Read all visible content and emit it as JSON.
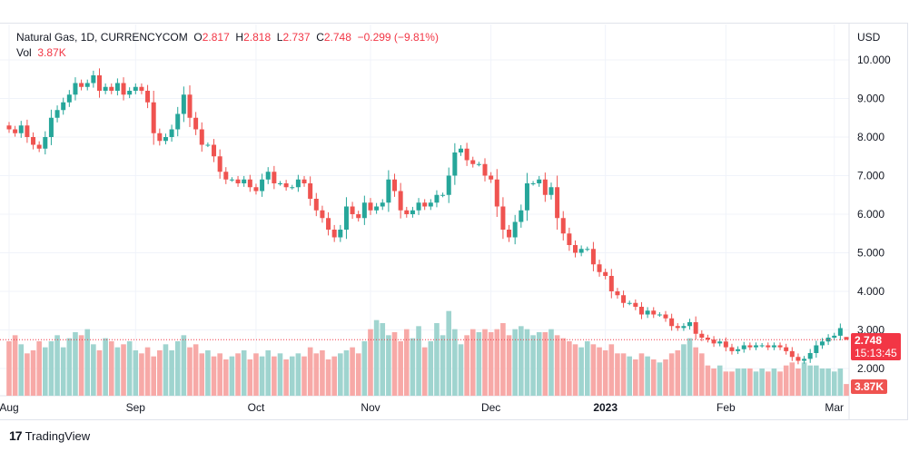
{
  "header": {
    "symbol": "Natural Gas, 1D, CURRENCYCOM",
    "o_label": "O",
    "o": "2.817",
    "h_label": "H",
    "h": "2.818",
    "l_label": "L",
    "l": "2.737",
    "c_label": "C",
    "c": "2.748",
    "change": "−0.299 (−9.81%)",
    "vol_label": "Vol",
    "vol": "3.87K"
  },
  "axis": {
    "currency": "USD"
  },
  "price_label": {
    "price": "2.748",
    "countdown": "15:13:45"
  },
  "volume_label": "3.87K",
  "brand": "TradingView",
  "colors": {
    "up": "#26a69a",
    "down": "#ef5350",
    "up_vol": "#9fd4cf",
    "down_vol": "#f7a9a7",
    "accent": "#f23645"
  },
  "chart_data": {
    "type": "candlestick",
    "title": "Natural Gas, 1D, CURRENCYCOM",
    "ylabel": "USD",
    "ylim": [
      1.25,
      10.9
    ],
    "yticks": [
      "10.000",
      "9.000",
      "8.000",
      "7.000",
      "6.000",
      "5.000",
      "4.000",
      "3.000",
      "2.000"
    ],
    "xticks": [
      {
        "label": "Aug",
        "i": 0
      },
      {
        "label": "Sep",
        "i": 21
      },
      {
        "label": "Oct",
        "i": 41
      },
      {
        "label": "Nov",
        "i": 60
      },
      {
        "label": "Dec",
        "i": 80
      },
      {
        "label": "2023",
        "i": 99,
        "bold": true
      },
      {
        "label": "Feb",
        "i": 119
      },
      {
        "label": "Mar",
        "i": 137
      }
    ],
    "first_open": 8.3,
    "closes": [
      8.2,
      8.1,
      8.3,
      8.0,
      7.8,
      7.7,
      8.0,
      8.5,
      8.7,
      8.9,
      9.1,
      9.4,
      9.3,
      9.4,
      9.6,
      9.2,
      9.3,
      9.2,
      9.4,
      9.1,
      9.2,
      9.3,
      9.2,
      8.9,
      8.1,
      7.9,
      8.0,
      8.2,
      8.6,
      9.1,
      8.5,
      8.2,
      7.8,
      7.8,
      7.5,
      7.1,
      6.9,
      6.9,
      6.8,
      6.9,
      6.7,
      6.6,
      6.9,
      7.1,
      6.8,
      6.8,
      6.7,
      6.7,
      6.9,
      6.8,
      6.4,
      6.1,
      5.9,
      5.6,
      5.4,
      5.6,
      6.2,
      6.0,
      5.9,
      6.3,
      6.1,
      6.2,
      6.3,
      6.9,
      6.6,
      6.1,
      6.0,
      6.1,
      6.3,
      6.2,
      6.3,
      6.5,
      6.5,
      7.0,
      7.6,
      7.7,
      7.4,
      7.3,
      7.3,
      7.0,
      6.9,
      6.2,
      5.6,
      5.4,
      5.8,
      6.1,
      6.8,
      6.8,
      6.9,
      6.5,
      6.7,
      5.9,
      5.5,
      5.2,
      5.0,
      5.1,
      5.1,
      4.7,
      4.5,
      4.4,
      4.0,
      3.9,
      3.7,
      3.7,
      3.6,
      3.4,
      3.5,
      3.4,
      3.4,
      3.3,
      3.1,
      3.05,
      3.1,
      3.2,
      2.9,
      2.8,
      2.75,
      2.65,
      2.7,
      2.55,
      2.45,
      2.5,
      2.6,
      2.55,
      2.6,
      2.6,
      2.55,
      2.6,
      2.55,
      2.45,
      2.3,
      2.2,
      2.25,
      2.4,
      2.6,
      2.7,
      2.8,
      2.85,
      3.047,
      2.748
    ],
    "last_bar": {
      "open": 2.817,
      "high": 2.818,
      "low": 2.737,
      "close": 2.748
    },
    "volumes_k": [
      18,
      20,
      17,
      14,
      15,
      18,
      16,
      18,
      20,
      16,
      19,
      21,
      20,
      22,
      17,
      15,
      19,
      18,
      16,
      17,
      18,
      15,
      14,
      16,
      13,
      15,
      17,
      15,
      18,
      20,
      16,
      17,
      14,
      15,
      13,
      14,
      12,
      13,
      14,
      15,
      12,
      14,
      13,
      15,
      13,
      14,
      12,
      13,
      14,
      13,
      16,
      14,
      15,
      12,
      13,
      14,
      15,
      16,
      14,
      18,
      22,
      25,
      24,
      20,
      21,
      18,
      22,
      19,
      23,
      16,
      18,
      24,
      20,
      28,
      22,
      17,
      20,
      22,
      21,
      22,
      21,
      22,
      24,
      20,
      22,
      23,
      22,
      20,
      21,
      21,
      22,
      20,
      19,
      18,
      17,
      16,
      18,
      17,
      16,
      15,
      17,
      14,
      14,
      13,
      12,
      14,
      13,
      12,
      11,
      12,
      14,
      15,
      17,
      19,
      16,
      14,
      10,
      9,
      10,
      8,
      8,
      9,
      9,
      9,
      8,
      9,
      8,
      9,
      8,
      10,
      11,
      9,
      11,
      10,
      10,
      9,
      9,
      8,
      9,
      3.87
    ]
  }
}
